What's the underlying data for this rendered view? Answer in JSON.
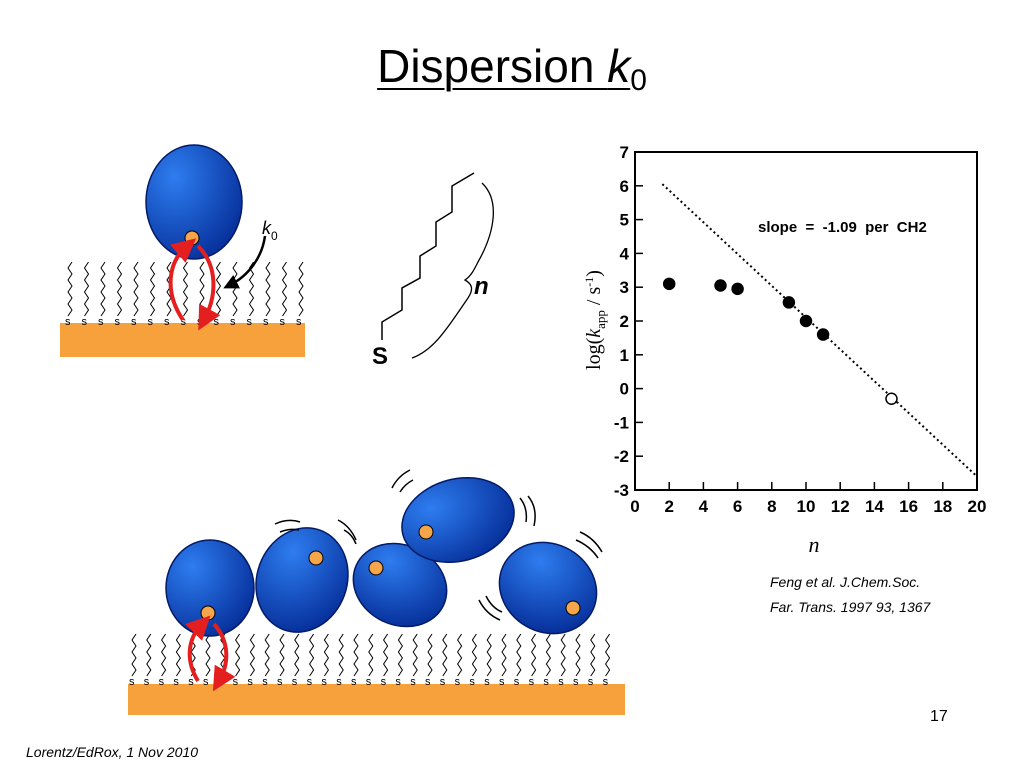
{
  "slide": {
    "title_text": "Dispersion ",
    "title_symbol": "k",
    "title_subscript": "0",
    "rate_label": "k",
    "rate_subscript": "0",
    "sulfur_label": "S",
    "chain_label": "n",
    "anchor_atom": "s",
    "citation_line1": "Feng et al. J.Chem.Soc.",
    "citation_line2": "Far. Trans. 1997 93, 1367",
    "slide_number": "17",
    "footer": "Lorentz/EdRox, 1 Nov 2010"
  },
  "colors": {
    "substrate": "#f7a13c",
    "protein_light": "#2e7df0",
    "protein_dark": "#062f9a",
    "heme": "#f6a64a",
    "arrow": "#e41f1f"
  },
  "chart_data": {
    "type": "scatter",
    "xlabel": "n",
    "ylabel": "log(kapp / s-1)",
    "xlim": [
      0,
      20
    ],
    "ylim": [
      -3,
      7
    ],
    "xticks": [
      0,
      2,
      4,
      6,
      8,
      10,
      12,
      14,
      16,
      18,
      20
    ],
    "yticks": [
      7,
      6,
      5,
      4,
      3,
      2,
      1,
      0,
      -1,
      -2,
      -3
    ],
    "annotation": "slope  =  -1.09  per  CH2",
    "series": [
      {
        "marker": "filled",
        "x": [
          2,
          5,
          6,
          9,
          10,
          11
        ],
        "y": [
          3.1,
          3.05,
          2.95,
          2.55,
          2.0,
          1.6
        ]
      },
      {
        "marker": "open",
        "x": [
          15
        ],
        "y": [
          -0.3
        ]
      }
    ],
    "fit_line": {
      "x": [
        1.6,
        20
      ],
      "y": [
        6.05,
        -2.6
      ],
      "style": "dotted"
    }
  }
}
